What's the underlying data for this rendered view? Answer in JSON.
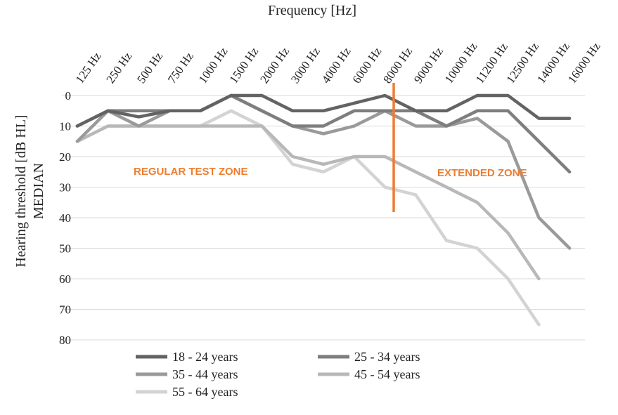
{
  "chart_data": {
    "type": "line",
    "title": "Frequency [Hz]",
    "ylabel_lines": [
      "Hearing threshold [dB HL]",
      "MEDIAN"
    ],
    "y_reversed": true,
    "ylim": [
      0,
      80
    ],
    "yticks": [
      0,
      10,
      20,
      30,
      40,
      50,
      60,
      70,
      80
    ],
    "grid": true,
    "legend_position": "bottom-left",
    "categories": [
      "125 Hz",
      "250 Hz",
      "500 Hz",
      "750 Hz",
      "1000 Hz",
      "1500 Hz",
      "2000 Hz",
      "3000 Hz",
      "4000 Hz",
      "6000 Hz",
      "8000 Hz",
      "9000 Hz",
      "10000 Hz",
      "11200 Hz",
      "12500 Hz",
      "14000 Hz",
      "16000 Hz"
    ],
    "series": [
      {
        "name": "18 - 24 years",
        "color": "#636363",
        "values": [
          10,
          5,
          7,
          5,
          5,
          0,
          0,
          5,
          5,
          2.5,
          0,
          5,
          5,
          0,
          0,
          7.5,
          7.5
        ]
      },
      {
        "name": "25 - 34 years",
        "color": "#7e7e7e",
        "values": [
          10,
          5,
          5,
          5,
          5,
          0,
          5,
          10,
          10,
          5,
          5,
          5,
          10,
          5,
          5,
          15,
          25
        ]
      },
      {
        "name": "35 - 44 years",
        "color": "#9a9a9a",
        "values": [
          15,
          5,
          10,
          5,
          5,
          0,
          5,
          10,
          12.5,
          10,
          5,
          10,
          10,
          7.5,
          15,
          40,
          50
        ]
      },
      {
        "name": "45 - 54 years",
        "color": "#b8b8b8",
        "values": [
          15,
          10,
          10,
          10,
          10,
          10,
          10,
          20,
          22.5,
          20,
          20,
          25,
          30,
          35,
          45,
          60,
          null
        ]
      },
      {
        "name": "55 - 64 years",
        "color": "#d3d3d3",
        "values": [
          15,
          10,
          10,
          10,
          10,
          5,
          10,
          22.5,
          25,
          20,
          30,
          32.5,
          47.5,
          50,
          60,
          75,
          null
        ]
      }
    ],
    "annotations": [
      {
        "text": "REGULAR TEST ZONE",
        "color": "#ed7d31"
      },
      {
        "text": "EXTENDED ZONE",
        "color": "#ed7d31"
      }
    ],
    "divider": {
      "after_category": "8000 Hz",
      "color": "#ed7d31"
    }
  }
}
